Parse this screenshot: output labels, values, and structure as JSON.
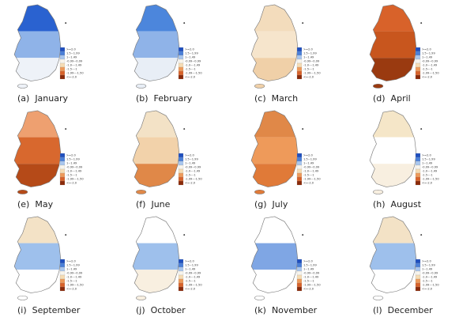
{
  "legend": {
    "labels": [
      ">=2.0",
      "1.5~1.99",
      "1~1.49",
      "-0.99~0.99",
      "-1.0~-1.49",
      "-1.5~-1",
      "-1.99~-1.50",
      "<=-2.0"
    ],
    "colors": [
      "#1f4fbf",
      "#4a7fd9",
      "#a9c6ee",
      "#f8f4ec",
      "#f6dcb4",
      "#ee9a5a",
      "#d8622a",
      "#8a2a0a"
    ]
  },
  "panels": [
    {
      "caption": "(a)  January",
      "shades": [
        "#2a62d0",
        "#8fb3e8",
        "#eef2f8"
      ]
    },
    {
      "caption": "(b)  February",
      "shades": [
        "#4c86dc",
        "#8fb3e8",
        "#e8eef6"
      ]
    },
    {
      "caption": "(c)  March",
      "shades": [
        "#f3dcbc",
        "#f6e5cc",
        "#f0d0a8"
      ]
    },
    {
      "caption": "(d)  April",
      "shades": [
        "#d8622a",
        "#c8561e",
        "#9a3a10"
      ]
    },
    {
      "caption": "(e)  May",
      "shades": [
        "#eea070",
        "#d8682e",
        "#b54a18"
      ]
    },
    {
      "caption": "(f)  June",
      "shades": [
        "#f3e2c6",
        "#f2d2aa",
        "#e08848"
      ]
    },
    {
      "caption": "(g)  July",
      "shades": [
        "#e08848",
        "#ee9a5a",
        "#e07a38"
      ]
    },
    {
      "caption": "(h)  August",
      "shades": [
        "#f5e6c8",
        "#ffffff",
        "#f8efe0"
      ]
    },
    {
      "caption": "(i)  September",
      "shades": [
        "#f3e2c6",
        "#9ec0ec",
        "#ffffff"
      ]
    },
    {
      "caption": "(j)  October",
      "shades": [
        "#ffffff",
        "#9ec0ec",
        "#f8efe0"
      ]
    },
    {
      "caption": "(k)  November",
      "shades": [
        "#ffffff",
        "#7fa6e4",
        "#ffffff"
      ]
    },
    {
      "caption": "(l)  December",
      "shades": [
        "#f3e2c6",
        "#9ec0ec",
        "#ffffff"
      ]
    }
  ]
}
